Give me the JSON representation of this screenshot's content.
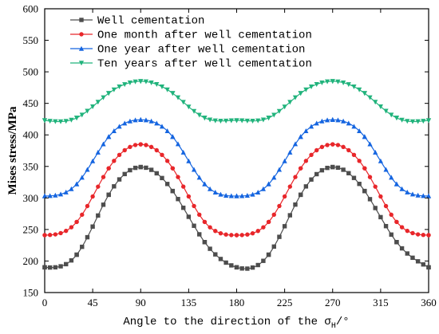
{
  "chart_data": {
    "type": "line",
    "xlabel": "Angle to the direction of the σ",
    "xlabel_sub": "H",
    "xlabel_suffix": "/°",
    "ylabel": "Mises stress/MPa",
    "xlim": [
      0,
      360
    ],
    "ylim": [
      150,
      600
    ],
    "x_ticks": [
      0,
      45,
      90,
      135,
      180,
      225,
      270,
      315,
      360
    ],
    "y_ticks": [
      150,
      200,
      250,
      300,
      350,
      400,
      450,
      500,
      550,
      600
    ],
    "grid": false,
    "legend_position": "top-left",
    "x": [
      0,
      30,
      60,
      90,
      120,
      150,
      180,
      210,
      240,
      270,
      300,
      330,
      360
    ],
    "series": [
      {
        "name": "Well cementation",
        "color": "#4d4d4d",
        "marker": "square",
        "values": [
          190,
          210,
          305,
          349,
          311,
          230,
          190,
          210,
          305,
          349,
          311,
          230,
          190
        ]
      },
      {
        "name": "One month after well cementation",
        "color": "#e8262a",
        "marker": "circle",
        "values": [
          241,
          262,
          347,
          385,
          347,
          262,
          241,
          262,
          347,
          385,
          347,
          262,
          241
        ]
      },
      {
        "name": "One year after well cementation",
        "color": "#1565e0",
        "marker": "triangle-up",
        "values": [
          303,
          322,
          397,
          424,
          397,
          322,
          303,
          322,
          397,
          424,
          397,
          322,
          303
        ]
      },
      {
        "name": "Ten years after well cementation",
        "color": "#21b37c",
        "marker": "triangle-down",
        "values": [
          423,
          427,
          466,
          485,
          466,
          427,
          423,
          427,
          466,
          485,
          466,
          427,
          423
        ]
      }
    ]
  }
}
